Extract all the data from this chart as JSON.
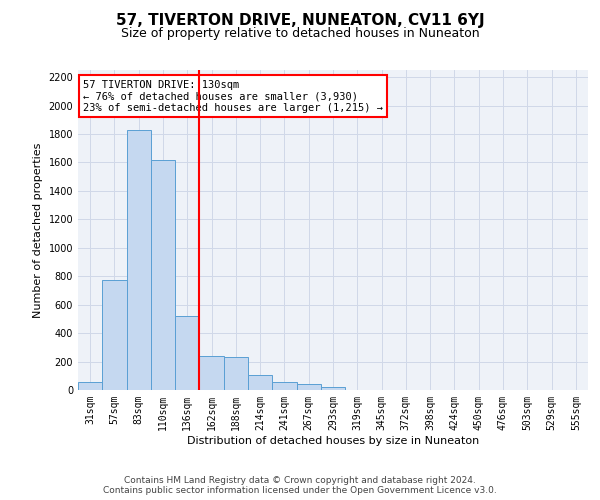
{
  "title": "57, TIVERTON DRIVE, NUNEATON, CV11 6YJ",
  "subtitle": "Size of property relative to detached houses in Nuneaton",
  "xlabel": "Distribution of detached houses by size in Nuneaton",
  "ylabel": "Number of detached properties",
  "categories": [
    "31sqm",
    "57sqm",
    "83sqm",
    "110sqm",
    "136sqm",
    "162sqm",
    "188sqm",
    "214sqm",
    "241sqm",
    "267sqm",
    "293sqm",
    "319sqm",
    "345sqm",
    "372sqm",
    "398sqm",
    "424sqm",
    "450sqm",
    "476sqm",
    "503sqm",
    "529sqm",
    "555sqm"
  ],
  "values": [
    55,
    775,
    1830,
    1615,
    520,
    240,
    235,
    105,
    55,
    40,
    20,
    0,
    0,
    0,
    0,
    0,
    0,
    0,
    0,
    0,
    0
  ],
  "bar_color": "#c5d8f0",
  "bar_edge_color": "#5a9fd4",
  "vline_color": "red",
  "annotation_text": "57 TIVERTON DRIVE: 130sqm\n← 76% of detached houses are smaller (3,930)\n23% of semi-detached houses are larger (1,215) →",
  "annotation_box_color": "white",
  "annotation_box_edge_color": "red",
  "ylim": [
    0,
    2250
  ],
  "yticks": [
    0,
    200,
    400,
    600,
    800,
    1000,
    1200,
    1400,
    1600,
    1800,
    2000,
    2200
  ],
  "grid_color": "#d0d8e8",
  "background_color": "#eef2f8",
  "footer_line1": "Contains HM Land Registry data © Crown copyright and database right 2024.",
  "footer_line2": "Contains public sector information licensed under the Open Government Licence v3.0.",
  "title_fontsize": 11,
  "subtitle_fontsize": 9,
  "axis_label_fontsize": 8,
  "tick_fontsize": 7,
  "annotation_fontsize": 7.5,
  "footer_fontsize": 6.5
}
